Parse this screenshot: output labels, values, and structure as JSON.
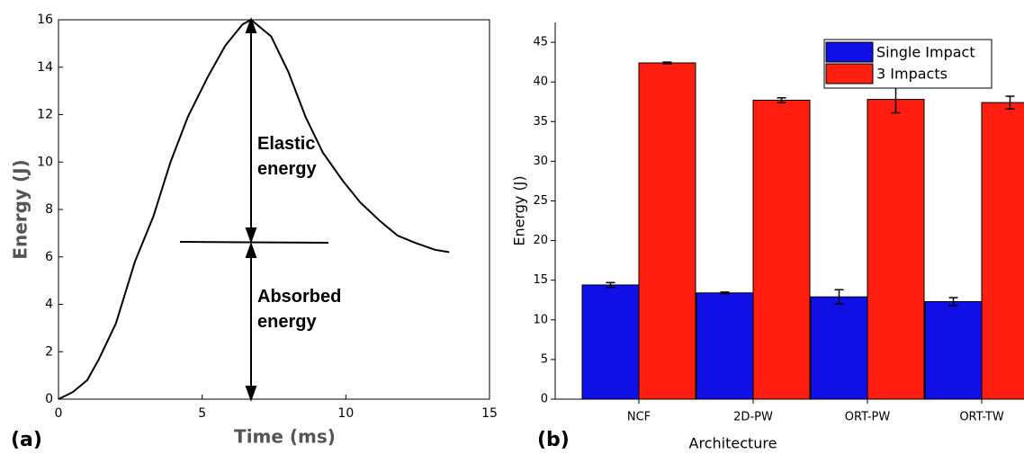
{
  "chart_data": [
    {
      "type": "line",
      "panel": "(a)",
      "xlabel": "Time (ms)",
      "ylabel": "Energy (J)",
      "annotations": [
        "Elastic energy",
        "Absorbed energy"
      ],
      "x": [
        0,
        0.5,
        1,
        1.4,
        2.0,
        2.66,
        3.3,
        3.9,
        4.5,
        5.2,
        5.8,
        6.4,
        6.7,
        7.4,
        8.0,
        8.6,
        9.2,
        9.9,
        10.5,
        11.2,
        11.8,
        12.4,
        13.1,
        13.6
      ],
      "values": [
        0,
        0.3,
        0.8,
        1.67,
        3.2,
        5.8,
        7.7,
        10,
        11.9,
        13.6,
        14.9,
        15.8,
        16,
        15.3,
        13.8,
        11.9,
        10.4,
        9.2,
        8.3,
        7.5,
        6.9,
        6.6,
        6.3,
        6.2
      ],
      "color": "#000000",
      "xlim": [
        0,
        15
      ],
      "xticks": [
        0,
        5,
        10,
        15
      ],
      "ylim": [
        0,
        16
      ],
      "yticks": [
        0,
        2,
        4,
        6,
        8,
        10,
        12,
        14,
        16
      ]
    },
    {
      "type": "bar",
      "panel": "(b)",
      "xlabel": "Architecture",
      "ylabel": "Energy (J)",
      "categories": [
        "NCF",
        "2D-PW",
        "ORT-PW",
        "ORT-TW"
      ],
      "series": [
        {
          "name": "Single Impact",
          "color": "#1010e6",
          "values": [
            14.4,
            13.4,
            12.9,
            12.3
          ],
          "errors": [
            0.3,
            0.1,
            0.9,
            0.5
          ]
        },
        {
          "name": "3 Impacts",
          "color": "#ff1e10",
          "values": [
            42.4,
            37.7,
            37.8,
            37.4
          ],
          "errors": [
            0.1,
            0.3,
            1.7,
            0.8
          ]
        }
      ],
      "ylim": [
        0,
        47.5
      ],
      "yticks": [
        0,
        5,
        10,
        15,
        20,
        25,
        30,
        35,
        40,
        45
      ],
      "legend": "upper right"
    }
  ]
}
